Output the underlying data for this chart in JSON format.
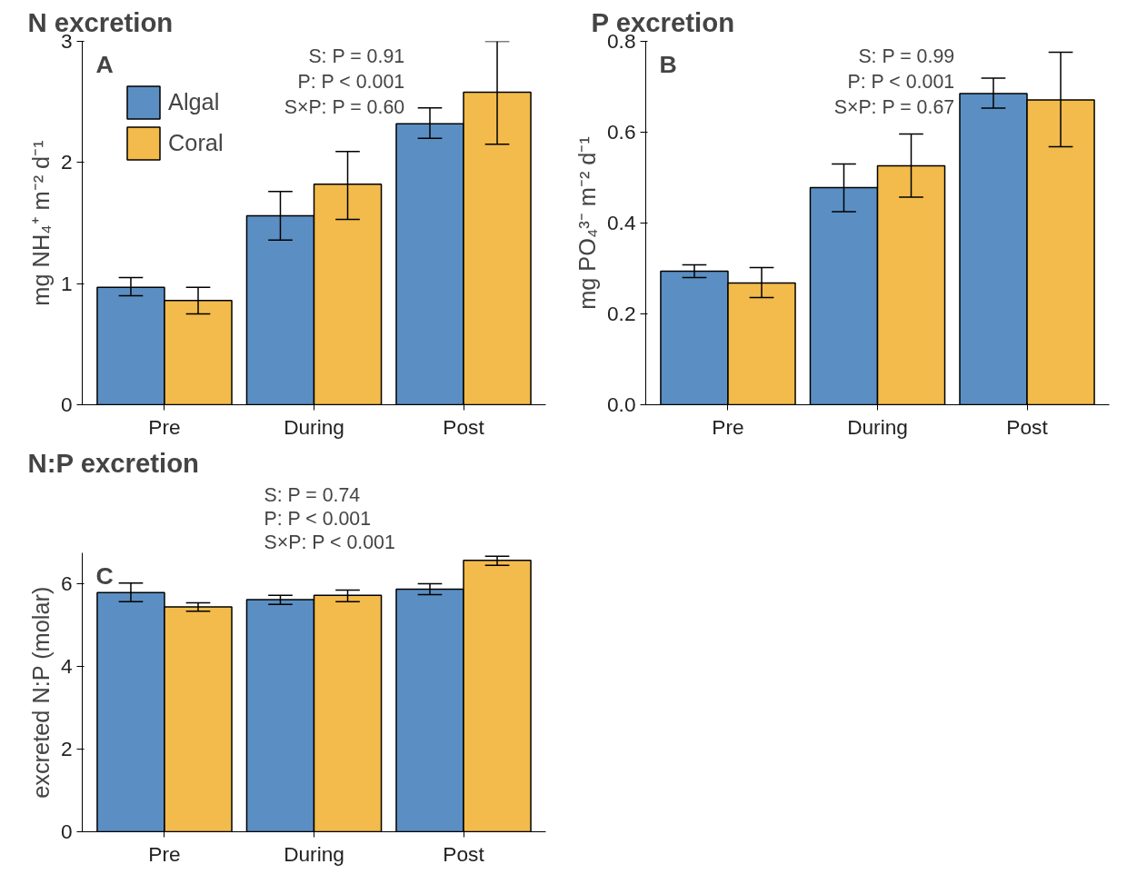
{
  "chart_data": [
    {
      "type": "bar",
      "title": "N excretion",
      "ylabel": "mg NH₄⁺ m⁻² d⁻¹",
      "categories": [
        "Pre",
        "During",
        "Post"
      ],
      "ylim": [
        0,
        3
      ],
      "yticks": [
        0,
        1,
        2,
        3
      ],
      "grid": false,
      "legend": "top left",
      "annotations": [
        "A",
        "S: P = 0.91",
        "P: P < 0.001",
        "S×P: P = 0.60"
      ],
      "series": [
        {
          "name": "Algal",
          "color": "#5b8fc3",
          "values": [
            0.97,
            1.56,
            2.32
          ],
          "errors": [
            [
              0.9,
              1.05
            ],
            [
              1.36,
              1.76
            ],
            [
              2.2,
              2.45
            ]
          ]
        },
        {
          "name": "Coral",
          "color": "#f2bb4b",
          "values": [
            0.86,
            1.82,
            2.58
          ],
          "errors": [
            [
              0.75,
              0.97
            ],
            [
              1.53,
              2.09
            ],
            [
              2.15,
              3.0
            ]
          ]
        }
      ]
    },
    {
      "type": "bar",
      "title": "P excretion",
      "ylabel": "mg PO₄³⁻ m⁻² d⁻¹",
      "categories": [
        "Pre",
        "During",
        "Post"
      ],
      "ylim": [
        0,
        0.8
      ],
      "yticks": [
        {
          "value": 0,
          "label": "0.0"
        },
        0.2,
        0.4,
        0.6,
        0.8
      ],
      "grid": false,
      "annotations": [
        "B",
        "S: P = 0.99",
        "P: P < 0.001",
        "S×P: P = 0.67"
      ],
      "series": [
        {
          "color": "#5b8fc3",
          "values": [
            0.294,
            0.478,
            0.685
          ],
          "errors": [
            [
              0.28,
              0.308
            ],
            [
              0.425,
              0.53
            ],
            [
              0.653,
              0.719
            ]
          ]
        },
        {
          "color": "#f2bb4b",
          "values": [
            0.268,
            0.526,
            0.671
          ],
          "errors": [
            [
              0.236,
              0.302
            ],
            [
              0.457,
              0.596
            ],
            [
              0.568,
              0.776
            ]
          ]
        }
      ]
    },
    {
      "type": "bar",
      "title": "N:P excretion",
      "ylabel": "excreted N:P (molar)",
      "categories": [
        "Pre",
        "During",
        "Post"
      ],
      "ylim": [
        0,
        6.75
      ],
      "yticks": [
        0,
        2,
        4,
        6
      ],
      "grid": false,
      "annotations": [
        "C",
        "S: P = 0.74",
        "P: P < 0.001",
        "S×P: P < 0.001"
      ],
      "series": [
        {
          "color": "#5b8fc3",
          "values": [
            5.79,
            5.62,
            5.87
          ],
          "errors": [
            [
              5.57,
              6.02
            ],
            [
              5.5,
              5.72
            ],
            [
              5.74,
              6.0
            ]
          ]
        },
        {
          "color": "#f2bb4b",
          "values": [
            5.44,
            5.72,
            6.57
          ],
          "errors": [
            [
              5.34,
              5.54
            ],
            [
              5.57,
              5.85
            ],
            [
              6.45,
              6.67
            ]
          ]
        }
      ]
    }
  ]
}
